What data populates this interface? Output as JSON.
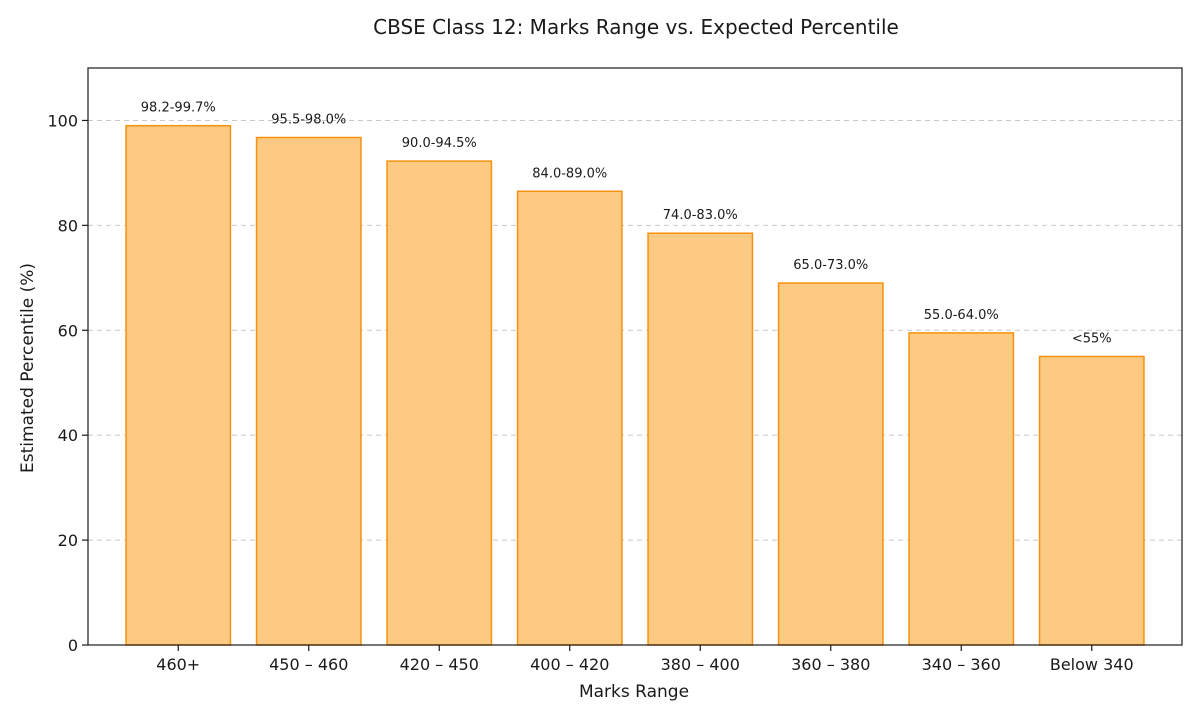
{
  "chart_data": {
    "type": "bar",
    "title": "CBSE Class 12: Marks Range vs. Expected Percentile",
    "xlabel": "Marks Range",
    "ylabel": "Estimated Percentile (%)",
    "categories": [
      "460+",
      "450 – 460",
      "420 – 450",
      "400 – 420",
      "380 – 400",
      "360 – 380",
      "340 – 360",
      "Below 340"
    ],
    "values": [
      99.0,
      96.75,
      92.25,
      86.5,
      78.5,
      69.0,
      59.5,
      55.0
    ],
    "data_labels": [
      "98.2-99.7%",
      "95.5-98.0%",
      "90.0-94.5%",
      "84.0-89.0%",
      "74.0-83.0%",
      "65.0-73.0%",
      "55.0-64.0%",
      "<55%"
    ],
    "ylim": [
      0,
      110
    ],
    "yticks": [
      0,
      20,
      40,
      60,
      80,
      100
    ],
    "grid": "y-dashed",
    "colors": {
      "bar_fill": "#fdca83",
      "bar_edge": "#f5920f"
    }
  }
}
